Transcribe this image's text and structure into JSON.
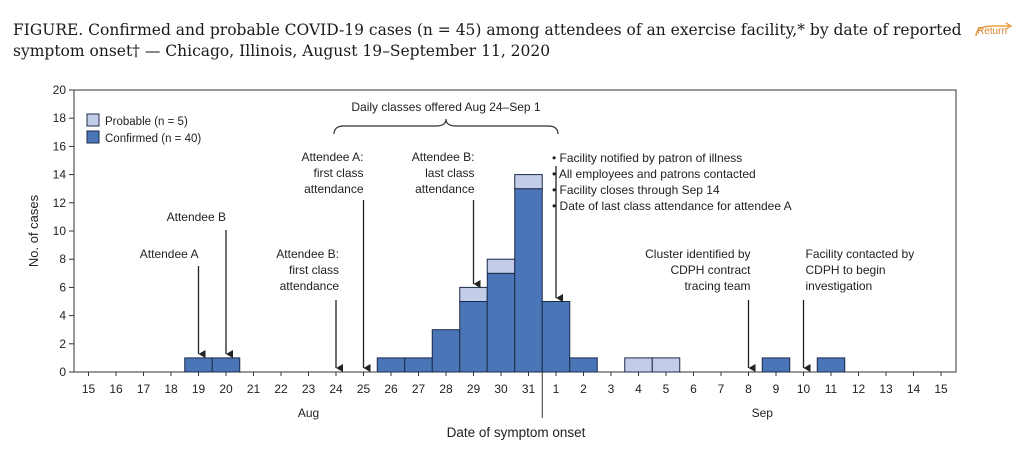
{
  "figure_title": "FIGURE. Confirmed and probable COVID-19 cases (n = 45) among attendees of an exercise facility,* by date of reported symptom onset† — Chicago, Illinois, August 19–September 11, 2020",
  "return_label": "Return",
  "colors": {
    "confirmed": "#4a76b8",
    "probable": "#c3cde8",
    "stroke": "#1c2a4a"
  },
  "chart_data": {
    "type": "bar",
    "stacked": true,
    "x": [
      "15",
      "16",
      "17",
      "18",
      "19",
      "20",
      "21",
      "22",
      "23",
      "24",
      "25",
      "26",
      "27",
      "28",
      "29",
      "30",
      "31",
      "1",
      "2",
      "3",
      "4",
      "5",
      "6",
      "7",
      "8",
      "9",
      "10",
      "11",
      "12",
      "13",
      "14",
      "15"
    ],
    "month_labels": [
      {
        "label": "Aug",
        "at_index": 8
      },
      {
        "label": "Sep",
        "at_index": 24.5
      }
    ],
    "series": [
      {
        "name": "Confirmed (n = 40)",
        "values": [
          0,
          0,
          0,
          0,
          1,
          1,
          0,
          0,
          0,
          0,
          0,
          1,
          1,
          3,
          5,
          7,
          13,
          5,
          1,
          0,
          0,
          0,
          0,
          0,
          0,
          1,
          0,
          1,
          0,
          0,
          0,
          0
        ]
      },
      {
        "name": "Probable (n = 5)",
        "values": [
          0,
          0,
          0,
          0,
          0,
          0,
          0,
          0,
          0,
          0,
          0,
          0,
          0,
          0,
          1,
          1,
          1,
          0,
          0,
          0,
          1,
          1,
          0,
          0,
          0,
          0,
          0,
          0,
          0,
          0,
          0,
          0
        ]
      }
    ],
    "xlabel": "Date of symptom onset",
    "ylabel": "No. of cases",
    "ylim": [
      0,
      20
    ],
    "yticks": [
      0,
      2,
      4,
      6,
      8,
      10,
      12,
      14,
      16,
      18,
      20
    ],
    "legend": {
      "position": "top-left",
      "entries": [
        "Probable (n = 5)",
        "Confirmed (n = 40)"
      ]
    },
    "brace_label": "Daily classes offered Aug 24–Sep 1",
    "annotations": [
      {
        "lines": [
          "Attendee A"
        ],
        "index": 4
      },
      {
        "lines": [
          "Attendee B"
        ],
        "index": 5
      },
      {
        "lines": [
          "Attendee B:",
          "first class",
          "attendance"
        ],
        "index": 9
      },
      {
        "lines": [
          "Attendee A:",
          "first class",
          "attendance"
        ],
        "index": 10
      },
      {
        "lines": [
          "Attendee B:",
          "last class",
          "attendance"
        ],
        "index": 14
      },
      {
        "lines": [
          "• Facility notified by patron of illness",
          "• All employees and patrons contacted",
          "• Facility closes through Sep 14",
          "• Date of last class attendance for attendee A"
        ],
        "index": 17
      },
      {
        "lines": [
          "Cluster identified by",
          "CDPH contract",
          "tracing team"
        ],
        "index": 24
      },
      {
        "lines": [
          "Facility contacted by",
          "CDPH to begin",
          "investigation"
        ],
        "index": 26
      }
    ]
  }
}
